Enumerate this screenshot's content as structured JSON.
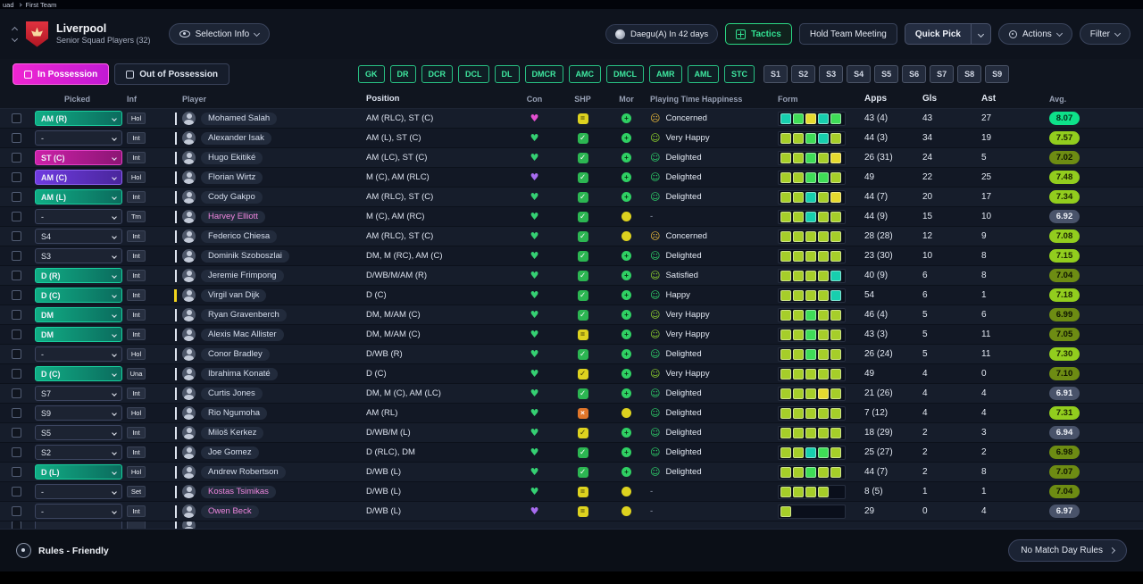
{
  "breadcrumb": {
    "items": [
      "uad",
      "First Team"
    ]
  },
  "header": {
    "team_name": "Liverpool",
    "subtitle": "Senior Squad Players (32)",
    "selection_info_label": "Selection Info",
    "next_match_label": "Daegu(A) In 42 days",
    "tactics_label": "Tactics",
    "hold_team_meeting_label": "Hold Team Meeting",
    "quick_pick_label": "Quick Pick",
    "actions_label": "Actions",
    "filter_label": "Filter"
  },
  "tabs": {
    "in_possession": "In Possession",
    "out_of_possession": "Out of Possession"
  },
  "filters": {
    "positions": [
      "GK",
      "DR",
      "DCR",
      "DCL",
      "DL",
      "DMCR",
      "AMC",
      "DMCL",
      "AMR",
      "AML",
      "STC"
    ],
    "slots": [
      "S1",
      "S2",
      "S3",
      "S4",
      "S5",
      "S6",
      "S7",
      "S8",
      "S9"
    ]
  },
  "icons": {
    "check": "✓",
    "equals": "=",
    "cross": "×",
    "smile": "☺",
    "frown": "☹",
    "heart": "♥",
    "plus": "+"
  },
  "colors": {
    "accent_magenta": "#e01ec9",
    "accent_green": "#2bd984"
  },
  "table": {
    "columns": [
      "Picked",
      "Inf",
      "Player",
      "Position",
      "Con",
      "SHP",
      "Mor",
      "Playing Time Happiness",
      "Form",
      "Apps",
      "Gls",
      "Ast",
      "Avg."
    ],
    "rows": [
      {
        "picked": "AM (R)",
        "picked_style": "green",
        "inf": "Hol",
        "player": "Mohamed Salah",
        "name_style": "normal",
        "position": "AM (RLC), ST (C)",
        "con": "pink",
        "shp": "equals-yellow",
        "mor": "green",
        "happiness": "Concerned",
        "happy_style": "concerned",
        "form": [
          "t",
          "G",
          "y",
          "t",
          "G"
        ],
        "apps": "43 (4)",
        "gls": "43",
        "ast": "27",
        "avg": "8.07",
        "avg_style": "bright"
      },
      {
        "picked": "-",
        "picked_style": "plain",
        "inf": "Int",
        "player": "Alexander Isak",
        "name_style": "normal",
        "position": "AM (L), ST (C)",
        "con": "green",
        "shp": "check-green",
        "mor": "green",
        "happiness": "Very Happy",
        "happy_style": "very-happy",
        "form": [
          "g",
          "g",
          "G",
          "t",
          "g"
        ],
        "apps": "44 (3)",
        "gls": "34",
        "ast": "19",
        "avg": "7.57",
        "avg_style": "green"
      },
      {
        "picked": "ST (C)",
        "picked_style": "magenta",
        "inf": "Int",
        "player": "Hugo Ekitiké",
        "name_style": "normal",
        "position": "AM (LC), ST (C)",
        "con": "green",
        "shp": "check-green",
        "mor": "green",
        "happiness": "Delighted",
        "happy_style": "delighted",
        "form": [
          "g",
          "g",
          "G",
          "g",
          "y"
        ],
        "apps": "26 (31)",
        "gls": "24",
        "ast": "5",
        "avg": "7.02",
        "avg_style": "olive"
      },
      {
        "picked": "AM (C)",
        "picked_style": "purple",
        "inf": "Hol",
        "player": "Florian Wirtz",
        "name_style": "normal",
        "position": "M (C), AM (RLC)",
        "con": "purple",
        "shp": "check-green",
        "mor": "green",
        "happiness": "Delighted",
        "happy_style": "delighted",
        "form": [
          "g",
          "g",
          "G",
          "G",
          "g"
        ],
        "apps": "49",
        "gls": "22",
        "ast": "25",
        "avg": "7.48",
        "avg_style": "green"
      },
      {
        "picked": "AM (L)",
        "picked_style": "green",
        "inf": "Int",
        "player": "Cody Gakpo",
        "name_style": "normal",
        "position": "AM (RLC), ST (C)",
        "con": "green",
        "shp": "check-green",
        "mor": "green",
        "happiness": "Delighted",
        "happy_style": "delighted",
        "form": [
          "g",
          "g",
          "t",
          "g",
          "y"
        ],
        "apps": "44 (7)",
        "gls": "20",
        "ast": "17",
        "avg": "7.34",
        "avg_style": "green"
      },
      {
        "picked": "-",
        "picked_style": "plain",
        "inf": "Trn",
        "player": "Harvey Elliott",
        "name_style": "pink",
        "position": "M (C), AM (RC)",
        "con": "green",
        "shp": "check-green",
        "mor": "yellow",
        "happiness": "-",
        "happy_style": "none",
        "form": [
          "g",
          "g",
          "t",
          "g",
          "g"
        ],
        "apps": "44 (9)",
        "gls": "15",
        "ast": "10",
        "avg": "6.92",
        "avg_style": "gray"
      },
      {
        "picked": "S4",
        "picked_style": "plain",
        "inf": "Int",
        "player": "Federico Chiesa",
        "name_style": "normal",
        "position": "AM (RLC), ST (C)",
        "con": "green",
        "shp": "check-green",
        "mor": "yellow",
        "happiness": "Concerned",
        "happy_style": "concerned",
        "form": [
          "g",
          "g",
          "g",
          "g",
          "g"
        ],
        "apps": "28 (28)",
        "gls": "12",
        "ast": "9",
        "avg": "7.08",
        "avg_style": "green"
      },
      {
        "picked": "S3",
        "picked_style": "plain",
        "inf": "Int",
        "player": "Dominik Szoboszlai",
        "name_style": "normal",
        "position": "DM, M (RC), AM (C)",
        "con": "green",
        "shp": "check-green",
        "mor": "green",
        "happiness": "Delighted",
        "happy_style": "delighted",
        "form": [
          "g",
          "g",
          "g",
          "g",
          "g"
        ],
        "apps": "23 (30)",
        "gls": "10",
        "ast": "8",
        "avg": "7.15",
        "avg_style": "green"
      },
      {
        "picked": "D (R)",
        "picked_style": "green",
        "inf": "Int",
        "player": "Jeremie Frimpong",
        "name_style": "normal",
        "position": "D/WB/M/AM (R)",
        "con": "green",
        "shp": "check-green",
        "mor": "green",
        "happiness": "Satisfied",
        "happy_style": "satisfied",
        "form": [
          "g",
          "g",
          "g",
          "g",
          "t"
        ],
        "apps": "40 (9)",
        "gls": "6",
        "ast": "8",
        "avg": "7.04",
        "avg_style": "olive"
      },
      {
        "picked": "D (C)",
        "picked_style": "green",
        "inf": "Int",
        "bar": "yellow",
        "player": "Virgil van Dijk",
        "name_style": "normal",
        "position": "D (C)",
        "con": "green",
        "shp": "check-green",
        "mor": "green",
        "happiness": "Happy",
        "happy_style": "happy",
        "form": [
          "g",
          "g",
          "g",
          "g",
          "t"
        ],
        "apps": "54",
        "gls": "6",
        "ast": "1",
        "avg": "7.18",
        "avg_style": "green"
      },
      {
        "picked": "DM",
        "picked_style": "green",
        "inf": "Int",
        "player": "Ryan Gravenberch",
        "name_style": "normal",
        "position": "DM, M/AM (C)",
        "con": "green",
        "shp": "check-green",
        "mor": "green",
        "happiness": "Very Happy",
        "happy_style": "very-happy",
        "form": [
          "g",
          "g",
          "G",
          "g",
          "g"
        ],
        "apps": "46 (4)",
        "gls": "5",
        "ast": "6",
        "avg": "6.99",
        "avg_style": "olive"
      },
      {
        "picked": "DM",
        "picked_style": "green",
        "inf": "Int",
        "player": "Alexis Mac Allister",
        "name_style": "normal",
        "position": "DM, M/AM (C)",
        "con": "green",
        "shp": "equals-yellow",
        "mor": "green",
        "happiness": "Very Happy",
        "happy_style": "very-happy",
        "form": [
          "g",
          "g",
          "G",
          "g",
          "g"
        ],
        "apps": "43 (3)",
        "gls": "5",
        "ast": "11",
        "avg": "7.05",
        "avg_style": "olive"
      },
      {
        "picked": "-",
        "picked_style": "plain",
        "inf": "Hol",
        "player": "Conor Bradley",
        "name_style": "normal",
        "position": "D/WB (R)",
        "con": "green",
        "shp": "check-green",
        "mor": "green",
        "happiness": "Delighted",
        "happy_style": "delighted",
        "form": [
          "g",
          "g",
          "G",
          "g",
          "g"
        ],
        "apps": "26 (24)",
        "gls": "5",
        "ast": "11",
        "avg": "7.30",
        "avg_style": "green"
      },
      {
        "picked": "D (C)",
        "picked_style": "green",
        "inf": "Una",
        "player": "Ibrahima Konaté",
        "name_style": "normal",
        "position": "D (C)",
        "con": "green",
        "shp": "check-yellow",
        "mor": "green",
        "happiness": "Very Happy",
        "happy_style": "very-happy",
        "form": [
          "g",
          "g",
          "g",
          "g",
          "g"
        ],
        "apps": "49",
        "gls": "4",
        "ast": "0",
        "avg": "7.10",
        "avg_style": "olive"
      },
      {
        "picked": "S7",
        "picked_style": "plain",
        "inf": "Int",
        "player": "Curtis Jones",
        "name_style": "normal",
        "position": "DM, M (C), AM (LC)",
        "con": "green",
        "shp": "check-green",
        "mor": "green",
        "happiness": "Delighted",
        "happy_style": "delighted",
        "form": [
          "g",
          "g",
          "g",
          "y",
          "g"
        ],
        "apps": "21 (26)",
        "gls": "4",
        "ast": "4",
        "avg": "6.91",
        "avg_style": "gray"
      },
      {
        "picked": "S9",
        "picked_style": "plain",
        "inf": "Hol",
        "player": "Rio Ngumoha",
        "name_style": "normal",
        "position": "AM (RL)",
        "con": "green",
        "shp": "cross-orange",
        "mor": "yellow",
        "happiness": "Delighted",
        "happy_style": "delighted",
        "form": [
          "g",
          "g",
          "g",
          "g",
          "g"
        ],
        "apps": "7 (12)",
        "gls": "4",
        "ast": "4",
        "avg": "7.31",
        "avg_style": "green"
      },
      {
        "picked": "S5",
        "picked_style": "plain",
        "inf": "Int",
        "player": "Miloš Kerkez",
        "name_style": "normal",
        "position": "D/WB/M (L)",
        "con": "green",
        "shp": "check-yellow",
        "mor": "green",
        "happiness": "Delighted",
        "happy_style": "delighted",
        "form": [
          "g",
          "g",
          "g",
          "g",
          "g"
        ],
        "apps": "18 (29)",
        "gls": "2",
        "ast": "3",
        "avg": "6.94",
        "avg_style": "gray"
      },
      {
        "picked": "S2",
        "picked_style": "plain",
        "inf": "Int",
        "player": "Joe Gomez",
        "name_style": "normal",
        "position": "D (RLC), DM",
        "con": "green",
        "shp": "check-green",
        "mor": "green",
        "happiness": "Delighted",
        "happy_style": "delighted",
        "form": [
          "g",
          "g",
          "t",
          "G",
          "g"
        ],
        "apps": "25 (27)",
        "gls": "2",
        "ast": "2",
        "avg": "6.98",
        "avg_style": "olive"
      },
      {
        "picked": "D (L)",
        "picked_style": "green",
        "inf": "Hol",
        "player": "Andrew Robertson",
        "name_style": "normal",
        "position": "D/WB (L)",
        "con": "green",
        "shp": "check-green",
        "mor": "green",
        "happiness": "Delighted",
        "happy_style": "delighted",
        "form": [
          "g",
          "g",
          "G",
          "g",
          "g"
        ],
        "apps": "44 (7)",
        "gls": "2",
        "ast": "8",
        "avg": "7.07",
        "avg_style": "olive"
      },
      {
        "picked": "-",
        "picked_style": "plain",
        "inf": "Set",
        "player": "Kostas Tsimikas",
        "name_style": "pink",
        "position": "D/WB (L)",
        "con": "green",
        "shp": "equals-yellow",
        "mor": "yellow",
        "happiness": "-",
        "happy_style": "none",
        "form": [
          "g",
          "g",
          "g",
          "g"
        ],
        "apps": "8 (5)",
        "gls": "1",
        "ast": "1",
        "avg": "7.04",
        "avg_style": "olive"
      },
      {
        "picked": "-",
        "picked_style": "plain",
        "inf": "Int",
        "player": "Owen Beck",
        "name_style": "pink",
        "position": "D/WB (L)",
        "con": "purple",
        "shp": "equals-yellow",
        "mor": "yellow",
        "happiness": "-",
        "happy_style": "none",
        "form": [
          "g"
        ],
        "apps": "29",
        "gls": "0",
        "ast": "4",
        "avg": "6.97",
        "avg_style": "gray"
      }
    ]
  },
  "footer": {
    "rules_label": "Rules - Friendly",
    "match_day_rules_label": "No Match Day Rules"
  }
}
